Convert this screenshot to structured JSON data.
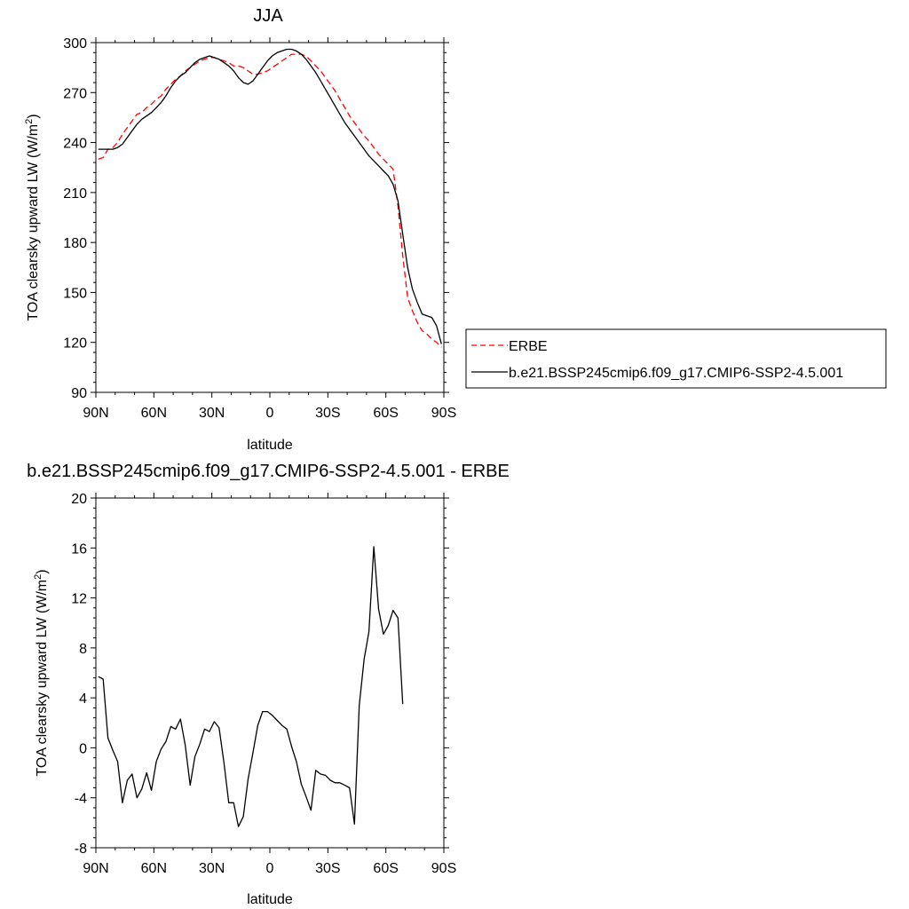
{
  "chart_data": [
    {
      "type": "line",
      "title": "JJA",
      "xlabel": "latitude",
      "ylabel": "TOA clearsky upward LW (W/m",
      "ylabel_sup": "2",
      "ylabel_close": ")",
      "xlim": [
        90,
        -90
      ],
      "ylim": [
        90,
        300
      ],
      "xticks": [
        90,
        60,
        30,
        0,
        -30,
        -60,
        -90
      ],
      "xtick_labels": [
        "90N",
        "60N",
        "30N",
        "0",
        "30S",
        "60S",
        "90S"
      ],
      "yticks": [
        90,
        120,
        150,
        180,
        210,
        240,
        270,
        300
      ],
      "ytick_labels": [
        "90",
        "120",
        "150",
        "180",
        "210",
        "240",
        "270",
        "300"
      ],
      "legend": {
        "placement": "right",
        "entries": [
          "ERBE",
          "b.e21.BSSP245cmip6.f09_g17.CMIP6-SSP2-4.5.001"
        ]
      },
      "series": [
        {
          "name": "ERBE",
          "color": "#ff0000",
          "style": "dashed",
          "points": [
            [
              88.75,
              230
            ],
            [
              86.25,
              231
            ],
            [
              83.75,
              236
            ],
            [
              81.25,
              237
            ],
            [
              78.75,
              240
            ],
            [
              76.25,
              245
            ],
            [
              73.75,
              249
            ],
            [
              71.25,
              253
            ],
            [
              68.75,
              257
            ],
            [
              66.25,
              258
            ],
            [
              63.75,
              261
            ],
            [
              61.25,
              263
            ],
            [
              58.75,
              266
            ],
            [
              56.25,
              268
            ],
            [
              53.75,
              272
            ],
            [
              51.25,
              275
            ],
            [
              48.75,
              278
            ],
            [
              46.25,
              280
            ],
            [
              43.75,
              283
            ],
            [
              41.25,
              285
            ],
            [
              38.75,
              287
            ],
            [
              36.25,
              289
            ],
            [
              33.75,
              290
            ],
            [
              31.25,
              291
            ],
            [
              28.75,
              291
            ],
            [
              26.25,
              290
            ],
            [
              23.75,
              289
            ],
            [
              21.25,
              288
            ],
            [
              18.75,
              286
            ],
            [
              16.25,
              286
            ],
            [
              13.75,
              285
            ],
            [
              11.25,
              283
            ],
            [
              8.75,
              281
            ],
            [
              6.25,
              281
            ],
            [
              3.75,
              282
            ],
            [
              1.25,
              283
            ],
            [
              -1.25,
              285
            ],
            [
              -3.75,
              287
            ],
            [
              -6.25,
              289
            ],
            [
              -8.75,
              291
            ],
            [
              -11.25,
              293
            ],
            [
              -13.75,
              293
            ],
            [
              -16.25,
              293
            ],
            [
              -18.75,
              292
            ],
            [
              -21.25,
              289
            ],
            [
              -23.75,
              286
            ],
            [
              -26.25,
              283
            ],
            [
              -28.75,
              279
            ],
            [
              -31.25,
              275
            ],
            [
              -33.75,
              271
            ],
            [
              -36.25,
              266
            ],
            [
              -38.75,
              261
            ],
            [
              -41.25,
              256
            ],
            [
              -43.75,
              252
            ],
            [
              -46.25,
              248
            ],
            [
              -48.75,
              244
            ],
            [
              -51.25,
              241
            ],
            [
              -53.75,
              237
            ],
            [
              -56.25,
              233
            ],
            [
              -58.75,
              230
            ],
            [
              -61.25,
              227
            ],
            [
              -63.75,
              224
            ],
            [
              -66.25,
              202
            ],
            [
              -68.75,
              172
            ],
            [
              -71.25,
              147
            ],
            [
              -73.75,
              139
            ],
            [
              -76.25,
              132
            ],
            [
              -78.75,
              127
            ],
            [
              -81.25,
              125
            ],
            [
              -83.75,
              122
            ],
            [
              -86.25,
              120
            ],
            [
              -88.75,
              117
            ]
          ]
        },
        {
          "name": "b.e21.BSSP245cmip6.f09_g17.CMIP6-SSP2-4.5.001",
          "color": "#000000",
          "style": "solid",
          "points": [
            [
              88.75,
              236
            ],
            [
              86.25,
              236
            ],
            [
              83.75,
              236
            ],
            [
              81.25,
              236
            ],
            [
              78.75,
              237
            ],
            [
              76.25,
              239
            ],
            [
              73.75,
              243
            ],
            [
              71.25,
              247
            ],
            [
              68.75,
              251
            ],
            [
              66.25,
              254
            ],
            [
              63.75,
              256
            ],
            [
              61.25,
              258
            ],
            [
              58.75,
              261
            ],
            [
              56.25,
              264
            ],
            [
              53.75,
              268
            ],
            [
              51.25,
              273
            ],
            [
              48.75,
              277
            ],
            [
              46.25,
              280
            ],
            [
              43.75,
              282
            ],
            [
              41.25,
              285
            ],
            [
              38.75,
              288
            ],
            [
              36.25,
              290
            ],
            [
              33.75,
              291
            ],
            [
              31.25,
              292
            ],
            [
              28.75,
              291
            ],
            [
              26.25,
              290
            ],
            [
              23.75,
              288
            ],
            [
              21.25,
              286
            ],
            [
              18.75,
              283
            ],
            [
              16.25,
              279
            ],
            [
              13.75,
              276
            ],
            [
              11.25,
              275
            ],
            [
              8.75,
              277
            ],
            [
              6.25,
              281
            ],
            [
              3.75,
              285
            ],
            [
              1.25,
              289
            ],
            [
              -1.25,
              292
            ],
            [
              -3.75,
              294
            ],
            [
              -6.25,
              295
            ],
            [
              -8.75,
              296
            ],
            [
              -11.25,
              296
            ],
            [
              -13.75,
              295
            ],
            [
              -16.25,
              293
            ],
            [
              -18.75,
              290
            ],
            [
              -21.25,
              286
            ],
            [
              -23.75,
              282
            ],
            [
              -26.25,
              277
            ],
            [
              -28.75,
              272
            ],
            [
              -31.25,
              267
            ],
            [
              -33.75,
              262
            ],
            [
              -36.25,
              257
            ],
            [
              -38.75,
              252
            ],
            [
              -41.25,
              248
            ],
            [
              -43.75,
              244
            ],
            [
              -46.25,
              240
            ],
            [
              -48.75,
              236
            ],
            [
              -51.25,
              232
            ],
            [
              -53.75,
              229
            ],
            [
              -56.25,
              226
            ],
            [
              -58.75,
              223
            ],
            [
              -61.25,
              220
            ],
            [
              -63.75,
              215
            ],
            [
              -66.25,
              205
            ],
            [
              -68.75,
              185
            ],
            [
              -71.25,
              165
            ],
            [
              -73.75,
              152
            ],
            [
              -76.25,
              144
            ],
            [
              -78.75,
              137
            ],
            [
              -81.25,
              136
            ],
            [
              -83.75,
              135
            ],
            [
              -86.25,
              130
            ],
            [
              -88.75,
              119
            ]
          ]
        }
      ]
    },
    {
      "type": "line",
      "title": "b.e21.BSSP245cmip6.f09_g17.CMIP6-SSP2-4.5.001 - ERBE",
      "xlabel": "latitude",
      "ylabel": "TOA clearsky upward LW (W/m",
      "ylabel_sup": "2",
      "ylabel_close": ")",
      "xlim": [
        90,
        -90
      ],
      "ylim": [
        -8,
        20
      ],
      "xticks": [
        90,
        60,
        30,
        0,
        -30,
        -60,
        -90
      ],
      "xtick_labels": [
        "90N",
        "60N",
        "30N",
        "0",
        "30S",
        "60S",
        "90S"
      ],
      "yticks": [
        -8,
        -4,
        0,
        4,
        8,
        12,
        16,
        20
      ],
      "ytick_labels": [
        "-8",
        "-4",
        "0",
        "4",
        "8",
        "12",
        "16",
        "20"
      ],
      "series": [
        {
          "color": "#000000",
          "style": "solid",
          "points": [
            [
              88.75,
              5.7
            ],
            [
              86.25,
              5.5
            ],
            [
              83.75,
              0.8
            ],
            [
              81.25,
              -0.2
            ],
            [
              78.75,
              -1.1
            ],
            [
              76.25,
              -4.4
            ],
            [
              73.75,
              -2.6
            ],
            [
              71.25,
              -2.1
            ],
            [
              68.75,
              -4.0
            ],
            [
              66.25,
              -3.3
            ],
            [
              63.75,
              -2.0
            ],
            [
              61.25,
              -3.4
            ],
            [
              58.75,
              -1.1
            ],
            [
              56.25,
              -0.1
            ],
            [
              53.75,
              0.5
            ],
            [
              51.25,
              1.7
            ],
            [
              48.75,
              1.5
            ],
            [
              46.25,
              2.3
            ],
            [
              43.75,
              0.2
            ],
            [
              41.25,
              -3.0
            ],
            [
              38.75,
              -0.7
            ],
            [
              36.25,
              0.3
            ],
            [
              33.75,
              1.5
            ],
            [
              31.25,
              1.3
            ],
            [
              28.75,
              2.1
            ],
            [
              26.25,
              1.6
            ],
            [
              23.75,
              -1.2
            ],
            [
              21.25,
              -4.4
            ],
            [
              18.75,
              -4.4
            ],
            [
              16.25,
              -6.3
            ],
            [
              13.75,
              -5.5
            ],
            [
              11.25,
              -2.5
            ],
            [
              8.75,
              -0.4
            ],
            [
              6.25,
              1.8
            ],
            [
              3.75,
              2.9
            ],
            [
              1.25,
              2.9
            ],
            [
              -1.25,
              2.6
            ],
            [
              -3.75,
              2.2
            ],
            [
              -6.25,
              1.8
            ],
            [
              -8.75,
              1.5
            ],
            [
              -11.25,
              0.1
            ],
            [
              -13.75,
              -1.1
            ],
            [
              -16.25,
              -2.9
            ],
            [
              -18.75,
              -3.9
            ],
            [
              -21.25,
              -5.0
            ],
            [
              -23.75,
              -1.8
            ],
            [
              -26.25,
              -2.1
            ],
            [
              -28.75,
              -2.2
            ],
            [
              -31.25,
              -2.6
            ],
            [
              -33.75,
              -2.8
            ],
            [
              -36.25,
              -2.8
            ],
            [
              -38.75,
              -3.0
            ],
            [
              -41.25,
              -3.2
            ],
            [
              -43.75,
              -6.1
            ],
            [
              -46.25,
              3.4
            ],
            [
              -48.75,
              7.1
            ],
            [
              -51.25,
              9.3
            ],
            [
              -53.75,
              16.1
            ],
            [
              -56.25,
              11.1
            ],
            [
              -58.75,
              9.1
            ],
            [
              -61.25,
              9.8
            ],
            [
              -63.75,
              11.0
            ],
            [
              -66.25,
              10.4
            ],
            [
              -68.75,
              3.5
            ]
          ]
        }
      ]
    }
  ]
}
